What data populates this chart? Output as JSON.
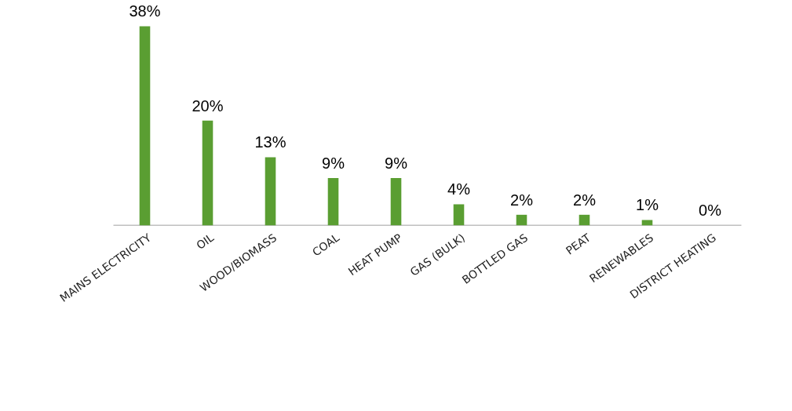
{
  "chart_data": {
    "type": "bar",
    "categories": [
      "MAINS ELECTRICITY",
      "OIL",
      "WOOD/BIOMASS",
      "COAL",
      "HEAT PUMP",
      "GAS (BULK)",
      "BOTTLED GAS",
      "PEAT",
      "RENEWABLES",
      "DISTRICT HEATING"
    ],
    "values": [
      38,
      20,
      13,
      9,
      9,
      4,
      2,
      2,
      1,
      0
    ],
    "color": "#5a9e32",
    "data_labels": true,
    "value_labels": [
      "38%",
      "20%",
      "13%",
      "9%",
      "9%",
      "4%",
      "2%",
      "2%",
      "1%",
      "0%"
    ]
  }
}
